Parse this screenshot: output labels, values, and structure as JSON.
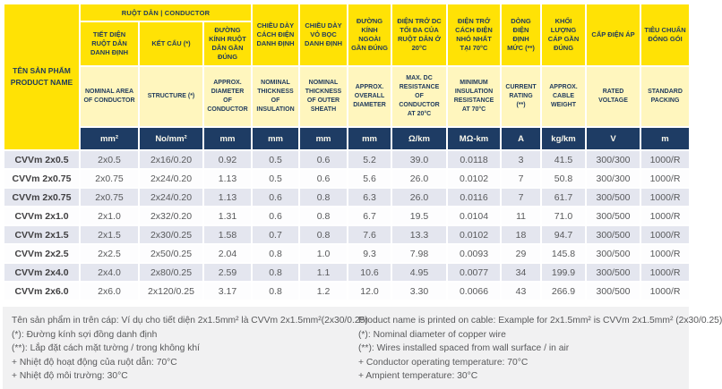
{
  "table": {
    "product_header": {
      "vi": "TÊN SẢN PHẨM",
      "en": "PRODUCT NAME"
    },
    "conductor_group_header": "RUỘT DẪN | CONDUCTOR",
    "columns": [
      {
        "vi": "TIẾT DIỆN RUỘT DẪN DANH ĐỊNH",
        "en": "NOMINAL AREA OF CONDUCTOR",
        "unit": "mm²"
      },
      {
        "vi": "KẾT CẤU (*)",
        "en": "STRUCTURE (*)",
        "unit": "No/mm²"
      },
      {
        "vi": "ĐƯỜNG KÍNH RUỘT DẪN GẦN ĐÚNG",
        "en": "APPROX. DIAMETER OF CONDUCTOR",
        "unit": "mm"
      },
      {
        "vi": "CHIỀU DÀY CÁCH ĐIỆN DANH ĐỊNH",
        "en": "NOMINAL THICKNESS OF INSULATION",
        "unit": "mm"
      },
      {
        "vi": "CHIỀU DÀY VỎ BỌC DANH ĐỊNH",
        "en": "NOMINAL THICKNESS OF OUTER SHEATH",
        "unit": "mm"
      },
      {
        "vi": "ĐƯỜNG KÍNH NGOÀI GẦN ĐÚNG",
        "en": "APPROX. OVERALL DIAMETER",
        "unit": "mm"
      },
      {
        "vi": "ĐIỆN TRỞ DC TỐI ĐA CỦA RUỘT DẪN Ở 20°C",
        "en": "MAX. DC RESISTANCE OF CONDUCTOR AT 20°C",
        "unit": "Ω/km"
      },
      {
        "vi": "ĐIỆN TRỞ CÁCH ĐIỆN NHỎ NHẤT TẠI 70°C",
        "en": "MINIMUM INSULATION RESISTANCE AT 70°C",
        "unit": "MΩ-km"
      },
      {
        "vi": "DÒNG ĐIỆN ĐỊNH MỨC (**)",
        "en": "CURRENT RATING (**)",
        "unit": "A"
      },
      {
        "vi": "KHỐI LƯỢNG CÁP GẦN ĐÚNG",
        "en": "APPROX. CABLE WEIGHT",
        "unit": "kg/km"
      },
      {
        "vi": "CẤP ĐIỆN ÁP",
        "en": "RATED VOLTAGE",
        "unit": "V"
      },
      {
        "vi": "TIÊU CHUẨN ĐÓNG GÓI",
        "en": "STANDARD PACKING",
        "unit": "m"
      }
    ],
    "rows": [
      {
        "name": "CVVm 2x0.5",
        "values": [
          "2x0.5",
          "2x16/0.20",
          "0.92",
          "0.5",
          "0.6",
          "5.2",
          "39.0",
          "0.0118",
          "3",
          "41.5",
          "300/300",
          "1000/R"
        ]
      },
      {
        "name": "CVVm 2x0.75",
        "values": [
          "2x0.75",
          "2x24/0.20",
          "1.13",
          "0.5",
          "0.6",
          "5.6",
          "26.0",
          "0.0102",
          "7",
          "50.8",
          "300/300",
          "1000/R"
        ]
      },
      {
        "name": "CVVm 2x0.75",
        "values": [
          "2x0.75",
          "2x24/0.20",
          "1.13",
          "0.6",
          "0.8",
          "6.3",
          "26.0",
          "0.0116",
          "7",
          "61.7",
          "300/500",
          "1000/R"
        ]
      },
      {
        "name": "CVVm 2x1.0",
        "values": [
          "2x1.0",
          "2x32/0.20",
          "1.31",
          "0.6",
          "0.8",
          "6.7",
          "19.5",
          "0.0104",
          "11",
          "71.0",
          "300/500",
          "1000/R"
        ]
      },
      {
        "name": "CVVm 2x1.5",
        "values": [
          "2x1.5",
          "2x30/0.25",
          "1.58",
          "0.7",
          "0.8",
          "7.6",
          "13.3",
          "0.0102",
          "18",
          "94.7",
          "300/500",
          "1000/R"
        ]
      },
      {
        "name": "CVVm 2x2.5",
        "values": [
          "2x2.5",
          "2x50/0.25",
          "2.04",
          "0.8",
          "1.0",
          "9.3",
          "7.98",
          "0.0093",
          "29",
          "145.8",
          "300/500",
          "1000/R"
        ]
      },
      {
        "name": "CVVm 2x4.0",
        "values": [
          "2x4.0",
          "2x80/0.25",
          "2.59",
          "0.8",
          "1.1",
          "10.6",
          "4.95",
          "0.0077",
          "34",
          "199.9",
          "300/500",
          "1000/R"
        ]
      },
      {
        "name": "CVVm 2x6.0",
        "values": [
          "2x6.0",
          "2x120/0.25",
          "3.17",
          "0.8",
          "1.2",
          "12.0",
          "3.30",
          "0.0066",
          "43",
          "266.9",
          "300/500",
          "1000/R"
        ]
      }
    ]
  },
  "footnotes": {
    "vi": [
      "Tên sản phẩm in trên cáp: Ví dụ cho tiết diện 2x1.5mm² là CVVm 2x1.5mm²(2x30/0.25)",
      "(*): Đường kính sợi đồng danh định",
      "(**): Lắp đặt cách mặt tường / trong không khí",
      "+ Nhiệt độ hoạt động của ruột dẫn: 70°C",
      "+ Nhiệt độ môi trường: 30°C"
    ],
    "en": [
      "Product name is printed on cable: Example for 2x1.5mm² is CVVm 2x1.5mm² (2x30/0.25)",
      "(*): Nominal diameter of copper wire",
      "(**): Wires installed spaced from wall surface / in air",
      "+ Conductor operating temperature: 70°C",
      "+ Ampient temperature: 30°C"
    ]
  },
  "colors": {
    "header_yellow": "#FFE205",
    "header_pale_yellow": "#FFF6BE",
    "units_navy": "#1E3C64",
    "row_stripe": "#E4E6EF",
    "footer_bg": "#F1F1F2",
    "header_text_navy": "#1F3A5C",
    "body_text": "#58595B"
  }
}
